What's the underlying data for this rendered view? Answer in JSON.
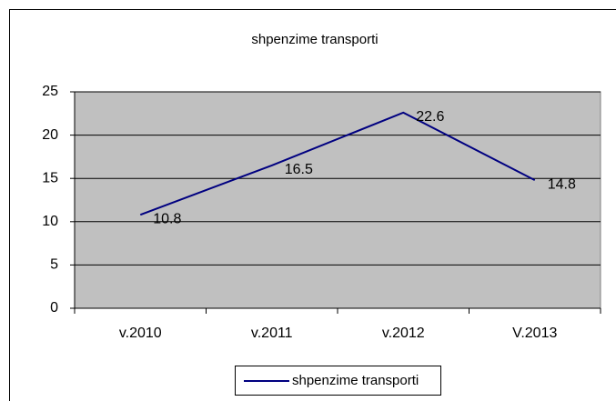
{
  "chart_data": {
    "type": "line",
    "title": "shpenzime transporti",
    "categories": [
      "v.2010",
      "v.2011",
      "v.2012",
      "V.2013"
    ],
    "series": [
      {
        "name": "shpenzime transporti",
        "color": "#000080",
        "values": [
          10.8,
          16.5,
          22.6,
          14.8
        ]
      }
    ],
    "ylim": [
      0,
      25
    ],
    "yticks": [
      0,
      5,
      10,
      15,
      20,
      25
    ],
    "grid": true,
    "legend": "bottom",
    "plot_background": "#c0c0c0",
    "data_labels": true
  }
}
